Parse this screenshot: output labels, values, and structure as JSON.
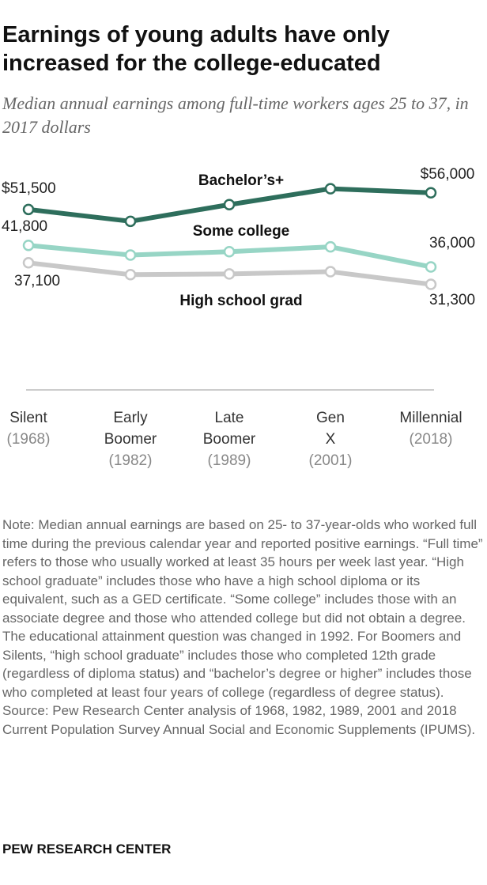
{
  "chart_data": {
    "type": "line",
    "title": "Earnings of young adults have only increased for the college-educated",
    "subtitle": "Median annual earnings among full-time workers ages 25 to 37, in 2017 dollars",
    "categories": [
      "Silent",
      "Early Boomer",
      "Late Boomer",
      "Gen X",
      "Millennial"
    ],
    "category_years": [
      "(1968)",
      "(1982)",
      "(1989)",
      "(2001)",
      "(2018)"
    ],
    "ylim": [
      25000,
      60000
    ],
    "series": [
      {
        "name": "Bachelor’s+",
        "color": "#2e6e5c",
        "values": [
          51500,
          48300,
          52800,
          57100,
          56000
        ],
        "value_labels": [
          "$51,500",
          null,
          null,
          null,
          "$56,000"
        ]
      },
      {
        "name": "Some college",
        "color": "#97d5c5",
        "values": [
          41800,
          39200,
          40100,
          41400,
          36000
        ],
        "value_labels": [
          "41,800",
          null,
          null,
          null,
          "36,000"
        ]
      },
      {
        "name": "High school grad",
        "color": "#c8c8c8",
        "values": [
          37100,
          33900,
          34100,
          34700,
          31300
        ],
        "value_labels": [
          "37,100",
          null,
          null,
          null,
          "31,300"
        ]
      }
    ],
    "note": "Note: Median annual earnings are based on 25- to 37-year-olds who worked full time during the previous calendar year and reported positive earnings. “Full time” refers to those who usually worked at least 35 hours per week last year. “High school graduate” includes those who have a high school diploma or its equivalent, such as a GED certificate. “Some college” includes those with an associate degree and those who attended college but did not obtain a degree. The educational attainment question was changed in 1992. For Boomers and Silents, “high school graduate” includes those who completed 12th grade (regardless of diploma status) and “bachelor’s degree or higher” includes those who completed at least four years of college (regardless of degree status).",
    "source": "Source: Pew Research Center analysis of 1968, 1982, 1989, 2001 and 2018 Current Population Survey Annual Social and Economic Supplements (IPUMS).",
    "credit": "PEW RESEARCH CENTER"
  }
}
